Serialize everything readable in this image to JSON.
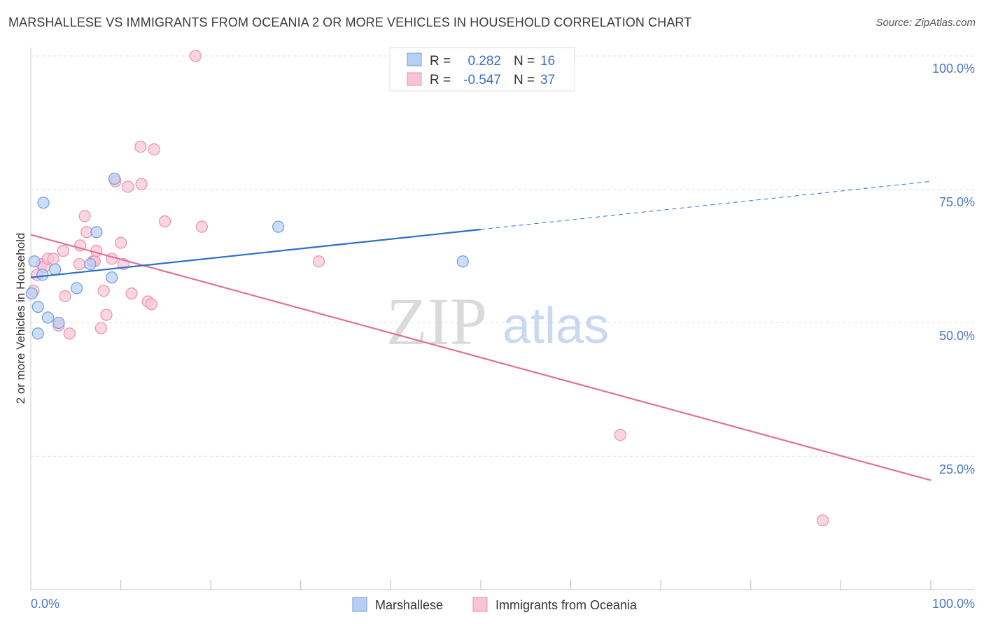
{
  "title": "MARSHALLESE VS IMMIGRANTS FROM OCEANIA 2 OR MORE VEHICLES IN HOUSEHOLD CORRELATION CHART",
  "source": "Source: ZipAtlas.com",
  "watermark": {
    "zip": "ZIP",
    "atlas": "atlas"
  },
  "colors": {
    "blue_fill": "#b7cff3",
    "blue_stroke": "#6f9be0",
    "blue_line": "#2f6fcb",
    "pink_fill": "#f8c4d4",
    "pink_stroke": "#ea8fac",
    "pink_line": "#e0709a",
    "tick_text": "#4a78c2",
    "grid": "#dddddd"
  },
  "legend": {
    "rows": [
      {
        "r_label": "R =",
        "r_value": "0.282",
        "n_label": "N =",
        "n_value": "16"
      },
      {
        "r_label": "R =",
        "r_value": "-0.547",
        "n_label": "N =",
        "n_value": "37"
      }
    ]
  },
  "chart_data": {
    "type": "scatter",
    "title": "MARSHALLESE VS IMMIGRANTS FROM OCEANIA 2 OR MORE VEHICLES IN HOUSEHOLD CORRELATION CHART",
    "xlabel": "",
    "ylabel": "2 or more Vehicles in Household",
    "xlim": [
      0,
      100
    ],
    "ylim": [
      0,
      102
    ],
    "x_tick_labels": [
      "0.0%",
      "100.0%"
    ],
    "y_ticks": [
      25,
      50,
      75,
      100
    ],
    "y_tick_labels": [
      "25.0%",
      "50.0%",
      "75.0%",
      "100.0%"
    ],
    "grid": true,
    "legend_position": "top-center",
    "series": [
      {
        "name": "Marshallese",
        "color": "blue",
        "points": [
          [
            0.1,
            55.5
          ],
          [
            0.4,
            61.5
          ],
          [
            0.8,
            53.0
          ],
          [
            0.8,
            48.0
          ],
          [
            1.3,
            59.0
          ],
          [
            1.4,
            72.5
          ],
          [
            1.9,
            51.0
          ],
          [
            2.7,
            60.0
          ],
          [
            3.1,
            50.0
          ],
          [
            5.1,
            56.5
          ],
          [
            6.6,
            61.0
          ],
          [
            7.3,
            67.0
          ],
          [
            9.0,
            58.5
          ],
          [
            9.3,
            77.0
          ],
          [
            27.5,
            68.0
          ],
          [
            48.0,
            61.5
          ]
        ],
        "trend": {
          "x0": 0,
          "y0": 58.5,
          "x1": 50,
          "y1": 67.5,
          "dash_to_x": 100,
          "dash_to_y": 76.5
        }
      },
      {
        "name": "Immigrants from Oceania",
        "color": "pink",
        "points": [
          [
            0.3,
            56.0
          ],
          [
            0.7,
            59.0
          ],
          [
            1.2,
            61.0
          ],
          [
            1.5,
            60.5
          ],
          [
            1.9,
            62.0
          ],
          [
            2.5,
            62.0
          ],
          [
            3.1,
            49.5
          ],
          [
            3.6,
            63.5
          ],
          [
            3.8,
            55.0
          ],
          [
            4.3,
            48.0
          ],
          [
            5.4,
            61.0
          ],
          [
            5.5,
            64.5
          ],
          [
            6.0,
            70.0
          ],
          [
            6.2,
            67.0
          ],
          [
            6.9,
            61.5
          ],
          [
            7.1,
            61.5
          ],
          [
            7.3,
            63.5
          ],
          [
            7.8,
            49.0
          ],
          [
            8.1,
            56.0
          ],
          [
            8.4,
            51.5
          ],
          [
            9.0,
            62.0
          ],
          [
            9.4,
            76.5
          ],
          [
            10.0,
            65.0
          ],
          [
            10.3,
            61.0
          ],
          [
            10.8,
            75.5
          ],
          [
            11.2,
            55.5
          ],
          [
            12.2,
            83.0
          ],
          [
            12.3,
            76.0
          ],
          [
            13.0,
            54.0
          ],
          [
            13.4,
            53.5
          ],
          [
            13.7,
            82.5
          ],
          [
            14.9,
            69.0
          ],
          [
            18.3,
            100.0
          ],
          [
            19.0,
            68.0
          ],
          [
            32.0,
            61.5
          ],
          [
            65.5,
            29.0
          ],
          [
            88.0,
            13.0
          ]
        ],
        "trend": {
          "x0": 0,
          "y0": 66.5,
          "x1": 100,
          "y1": 20.5
        }
      }
    ]
  }
}
